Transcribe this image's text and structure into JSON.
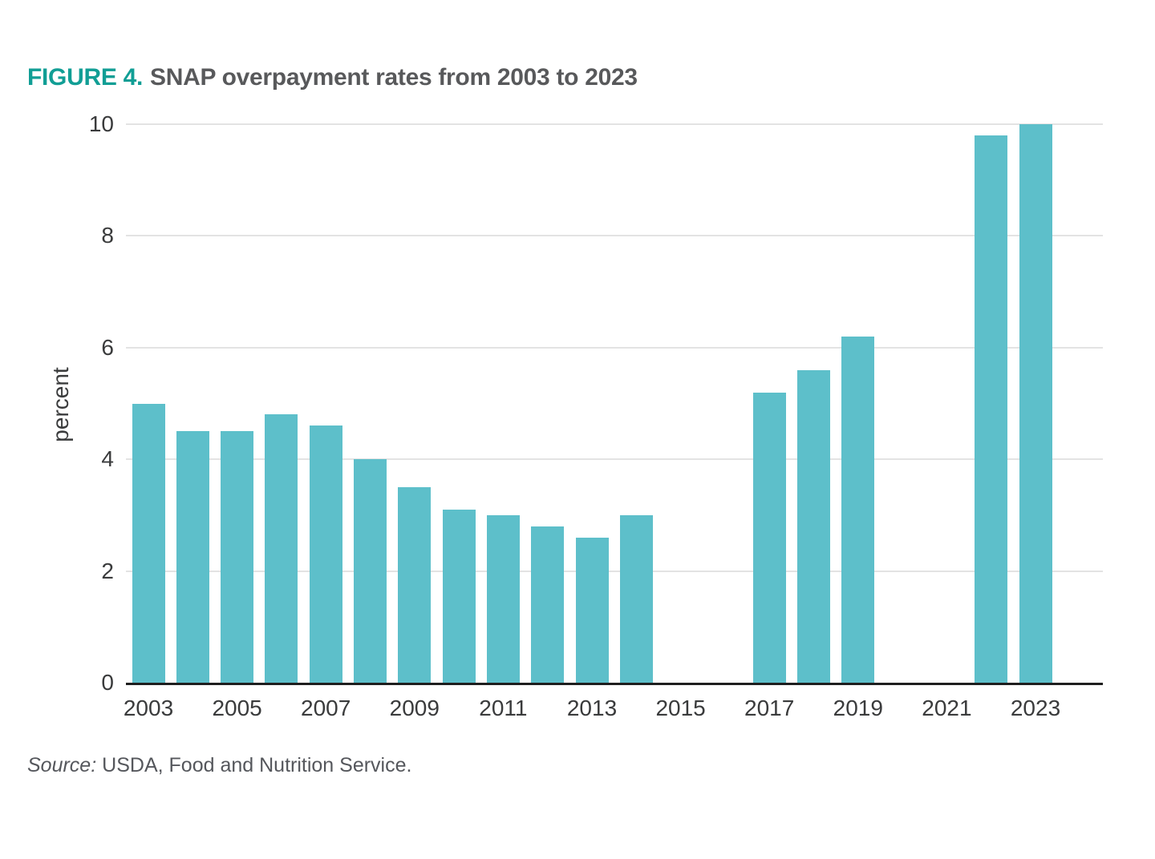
{
  "title": {
    "prefix": "FIGURE 4.",
    "text": "SNAP overpayment rates from 2003 to 2023"
  },
  "source": {
    "label": "Source:",
    "text": "USDA, Food and Nutrition Service."
  },
  "colors": {
    "figure_label_teal": "#119e95",
    "title_gray": "#58595b",
    "bar_teal": "#5dbfca",
    "gridline": "#e3e3e3",
    "axis_line": "#1f1f1f",
    "tick_label": "#3a3b3c",
    "source_gray": "#55575c"
  },
  "chart_data": {
    "type": "bar",
    "title": "SNAP overpayment rates from 2003 to 2023",
    "xlabel": "",
    "ylabel": "percent",
    "ylim": [
      0,
      10
    ],
    "yticks": [
      0,
      2,
      4,
      6,
      8,
      10
    ],
    "xticks": [
      2003,
      2005,
      2007,
      2009,
      2011,
      2013,
      2015,
      2017,
      2019,
      2021,
      2023
    ],
    "grid": "horizontal",
    "legend": "none",
    "bar_color": "#5dbfca",
    "years": [
      2003,
      2004,
      2005,
      2006,
      2007,
      2008,
      2009,
      2010,
      2011,
      2012,
      2013,
      2014,
      2015,
      2016,
      2017,
      2018,
      2019,
      2020,
      2021,
      2022,
      2023
    ],
    "values": [
      5.0,
      4.5,
      4.5,
      4.8,
      4.6,
      4.0,
      3.5,
      3.1,
      3.0,
      2.8,
      2.6,
      3.0,
      null,
      null,
      5.2,
      5.6,
      6.2,
      null,
      null,
      9.8,
      10.0
    ],
    "missing_years_note": "no bars shown for 2015, 2016, 2020, 2021"
  }
}
